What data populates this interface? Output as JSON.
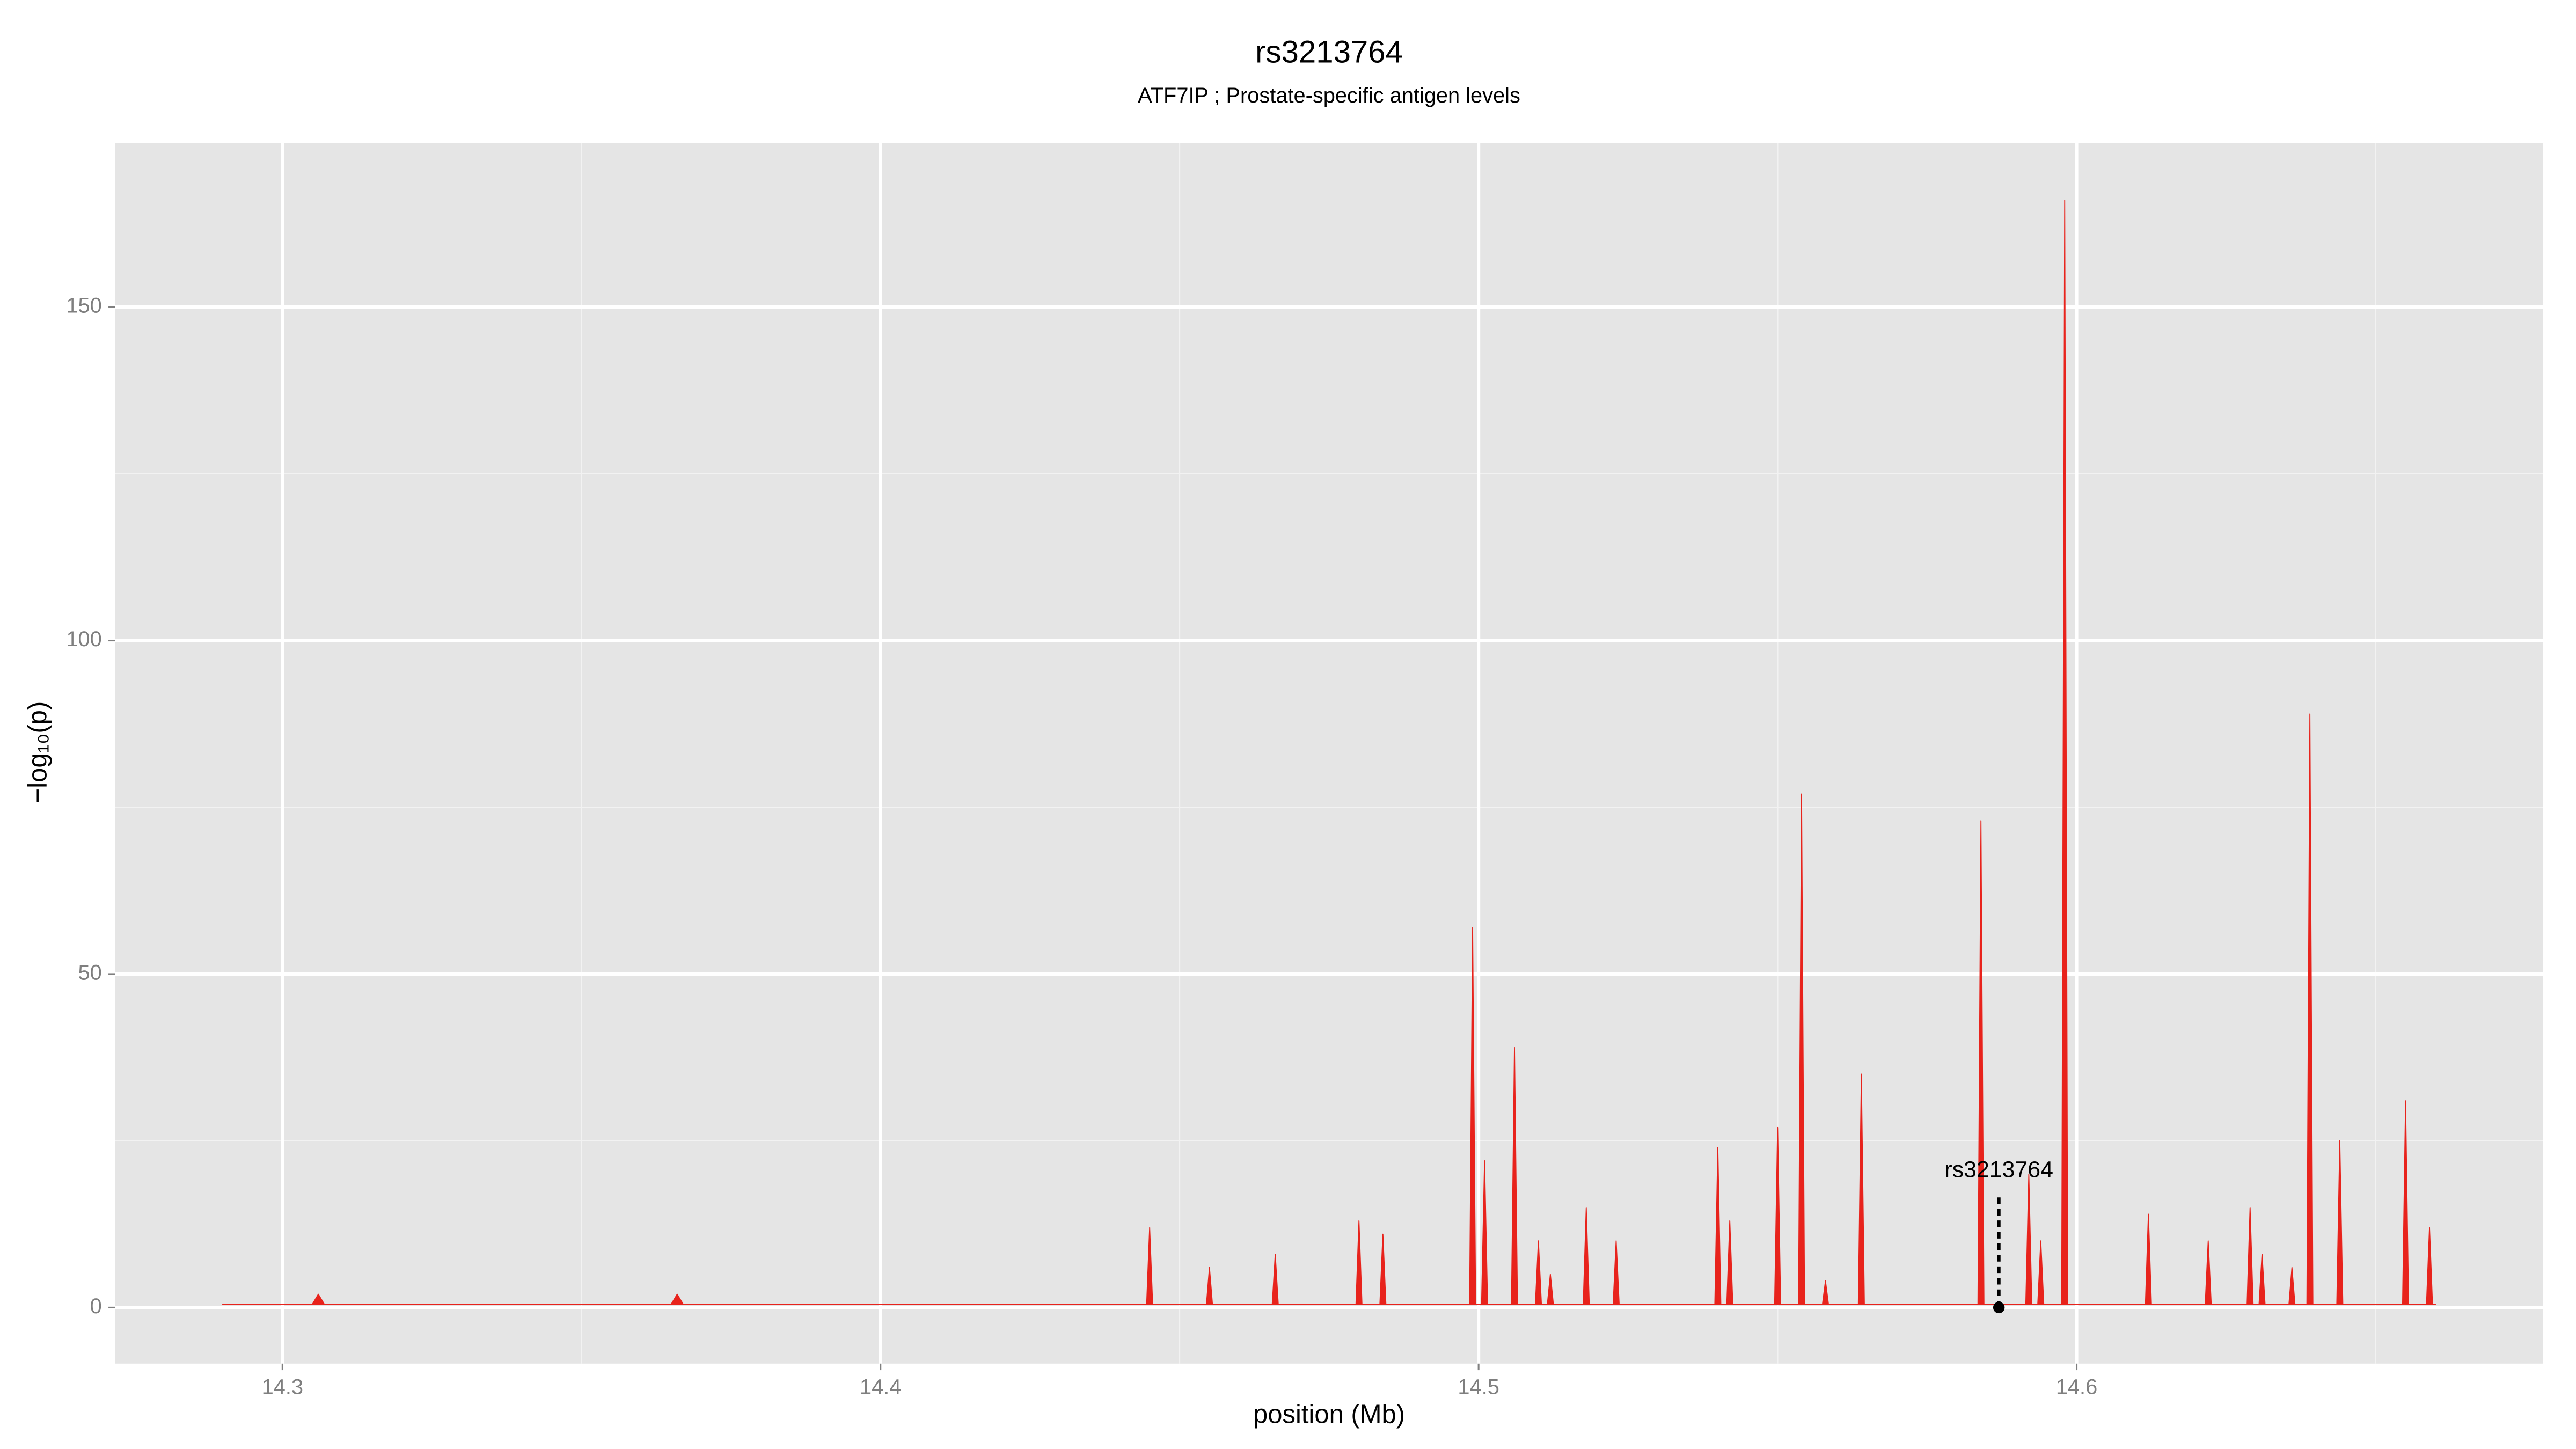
{
  "chart_data": {
    "type": "area",
    "title": "rs3213764",
    "subtitle": "ATF7IP ; Prostate-specific antigen levels",
    "x_label": "position (Mb)",
    "y_label": "−log₁₀(p)",
    "color": "#e8231c",
    "grid": true,
    "xlim": [
      14.272,
      14.678
    ],
    "ylim": [
      -8.4,
      174.6
    ],
    "xticks": [
      14.3,
      14.4,
      14.5,
      14.6
    ],
    "yticks": [
      0,
      50,
      100,
      150
    ],
    "x_minor_ticks": [
      14.35,
      14.45,
      14.55,
      14.65
    ],
    "y_minor_ticks": [
      25,
      75,
      125
    ],
    "x": [
      14.29,
      14.305,
      14.306,
      14.307,
      14.365,
      14.366,
      14.367,
      14.43,
      14.4445,
      14.445,
      14.4455,
      14.4545,
      14.455,
      14.4555,
      14.4655,
      14.466,
      14.4665,
      14.4795,
      14.48,
      14.4805,
      14.4835,
      14.484,
      14.4845,
      14.4985,
      14.499,
      14.4995,
      14.5005,
      14.501,
      14.5015,
      14.5055,
      14.506,
      14.5065,
      14.5095,
      14.51,
      14.5105,
      14.5115,
      14.512,
      14.5125,
      14.5175,
      14.518,
      14.5185,
      14.5225,
      14.523,
      14.5235,
      14.5395,
      14.54,
      14.5405,
      14.5415,
      14.542,
      14.5425,
      14.5495,
      14.55,
      14.5505,
      14.5535,
      14.554,
      14.5545,
      14.5575,
      14.558,
      14.5585,
      14.5635,
      14.564,
      14.5645,
      14.5835,
      14.584,
      14.5845,
      14.5915,
      14.592,
      14.5925,
      14.5935,
      14.594,
      14.5945,
      14.5975,
      14.598,
      14.5985,
      14.6115,
      14.612,
      14.6125,
      14.6215,
      14.622,
      14.6225,
      14.6285,
      14.629,
      14.6295,
      14.6305,
      14.631,
      14.6315,
      14.6355,
      14.636,
      14.6365,
      14.6385,
      14.639,
      14.6395,
      14.6435,
      14.644,
      14.6445,
      14.6545,
      14.655,
      14.6555,
      14.6585,
      14.659,
      14.6595,
      14.66
    ],
    "values": [
      0.5,
      0.5,
      2,
      0.5,
      0.5,
      2,
      0.5,
      0.5,
      0.5,
      12,
      0.5,
      0.5,
      6,
      0.5,
      0.5,
      8,
      0.5,
      0.5,
      13,
      0.5,
      0.5,
      11,
      0.5,
      0.5,
      57,
      0.5,
      0.5,
      22,
      0.5,
      0.5,
      39,
      0.5,
      0.5,
      10,
      0.5,
      0.5,
      5,
      0.5,
      0.5,
      15,
      0.5,
      0.5,
      10,
      0.5,
      0.5,
      24,
      0.5,
      0.5,
      13,
      0.5,
      0.5,
      27,
      0.5,
      0.5,
      77,
      0.5,
      0.5,
      4,
      0.5,
      0.5,
      35,
      0.5,
      0.5,
      73,
      0.5,
      0.5,
      20,
      0.5,
      0.5,
      10,
      0.5,
      0.5,
      166,
      0.5,
      0.5,
      14,
      0.5,
      0.5,
      10,
      0.5,
      0.5,
      15,
      0.5,
      0.5,
      8,
      0.5,
      0.5,
      6,
      0.5,
      0.5,
      89,
      0.5,
      0.5,
      25,
      0.5,
      0.5,
      31,
      0.5,
      0.5,
      12,
      0.5,
      0.5
    ],
    "annotation": {
      "label": "rs3213764",
      "x": 14.587,
      "y": 0
    }
  }
}
